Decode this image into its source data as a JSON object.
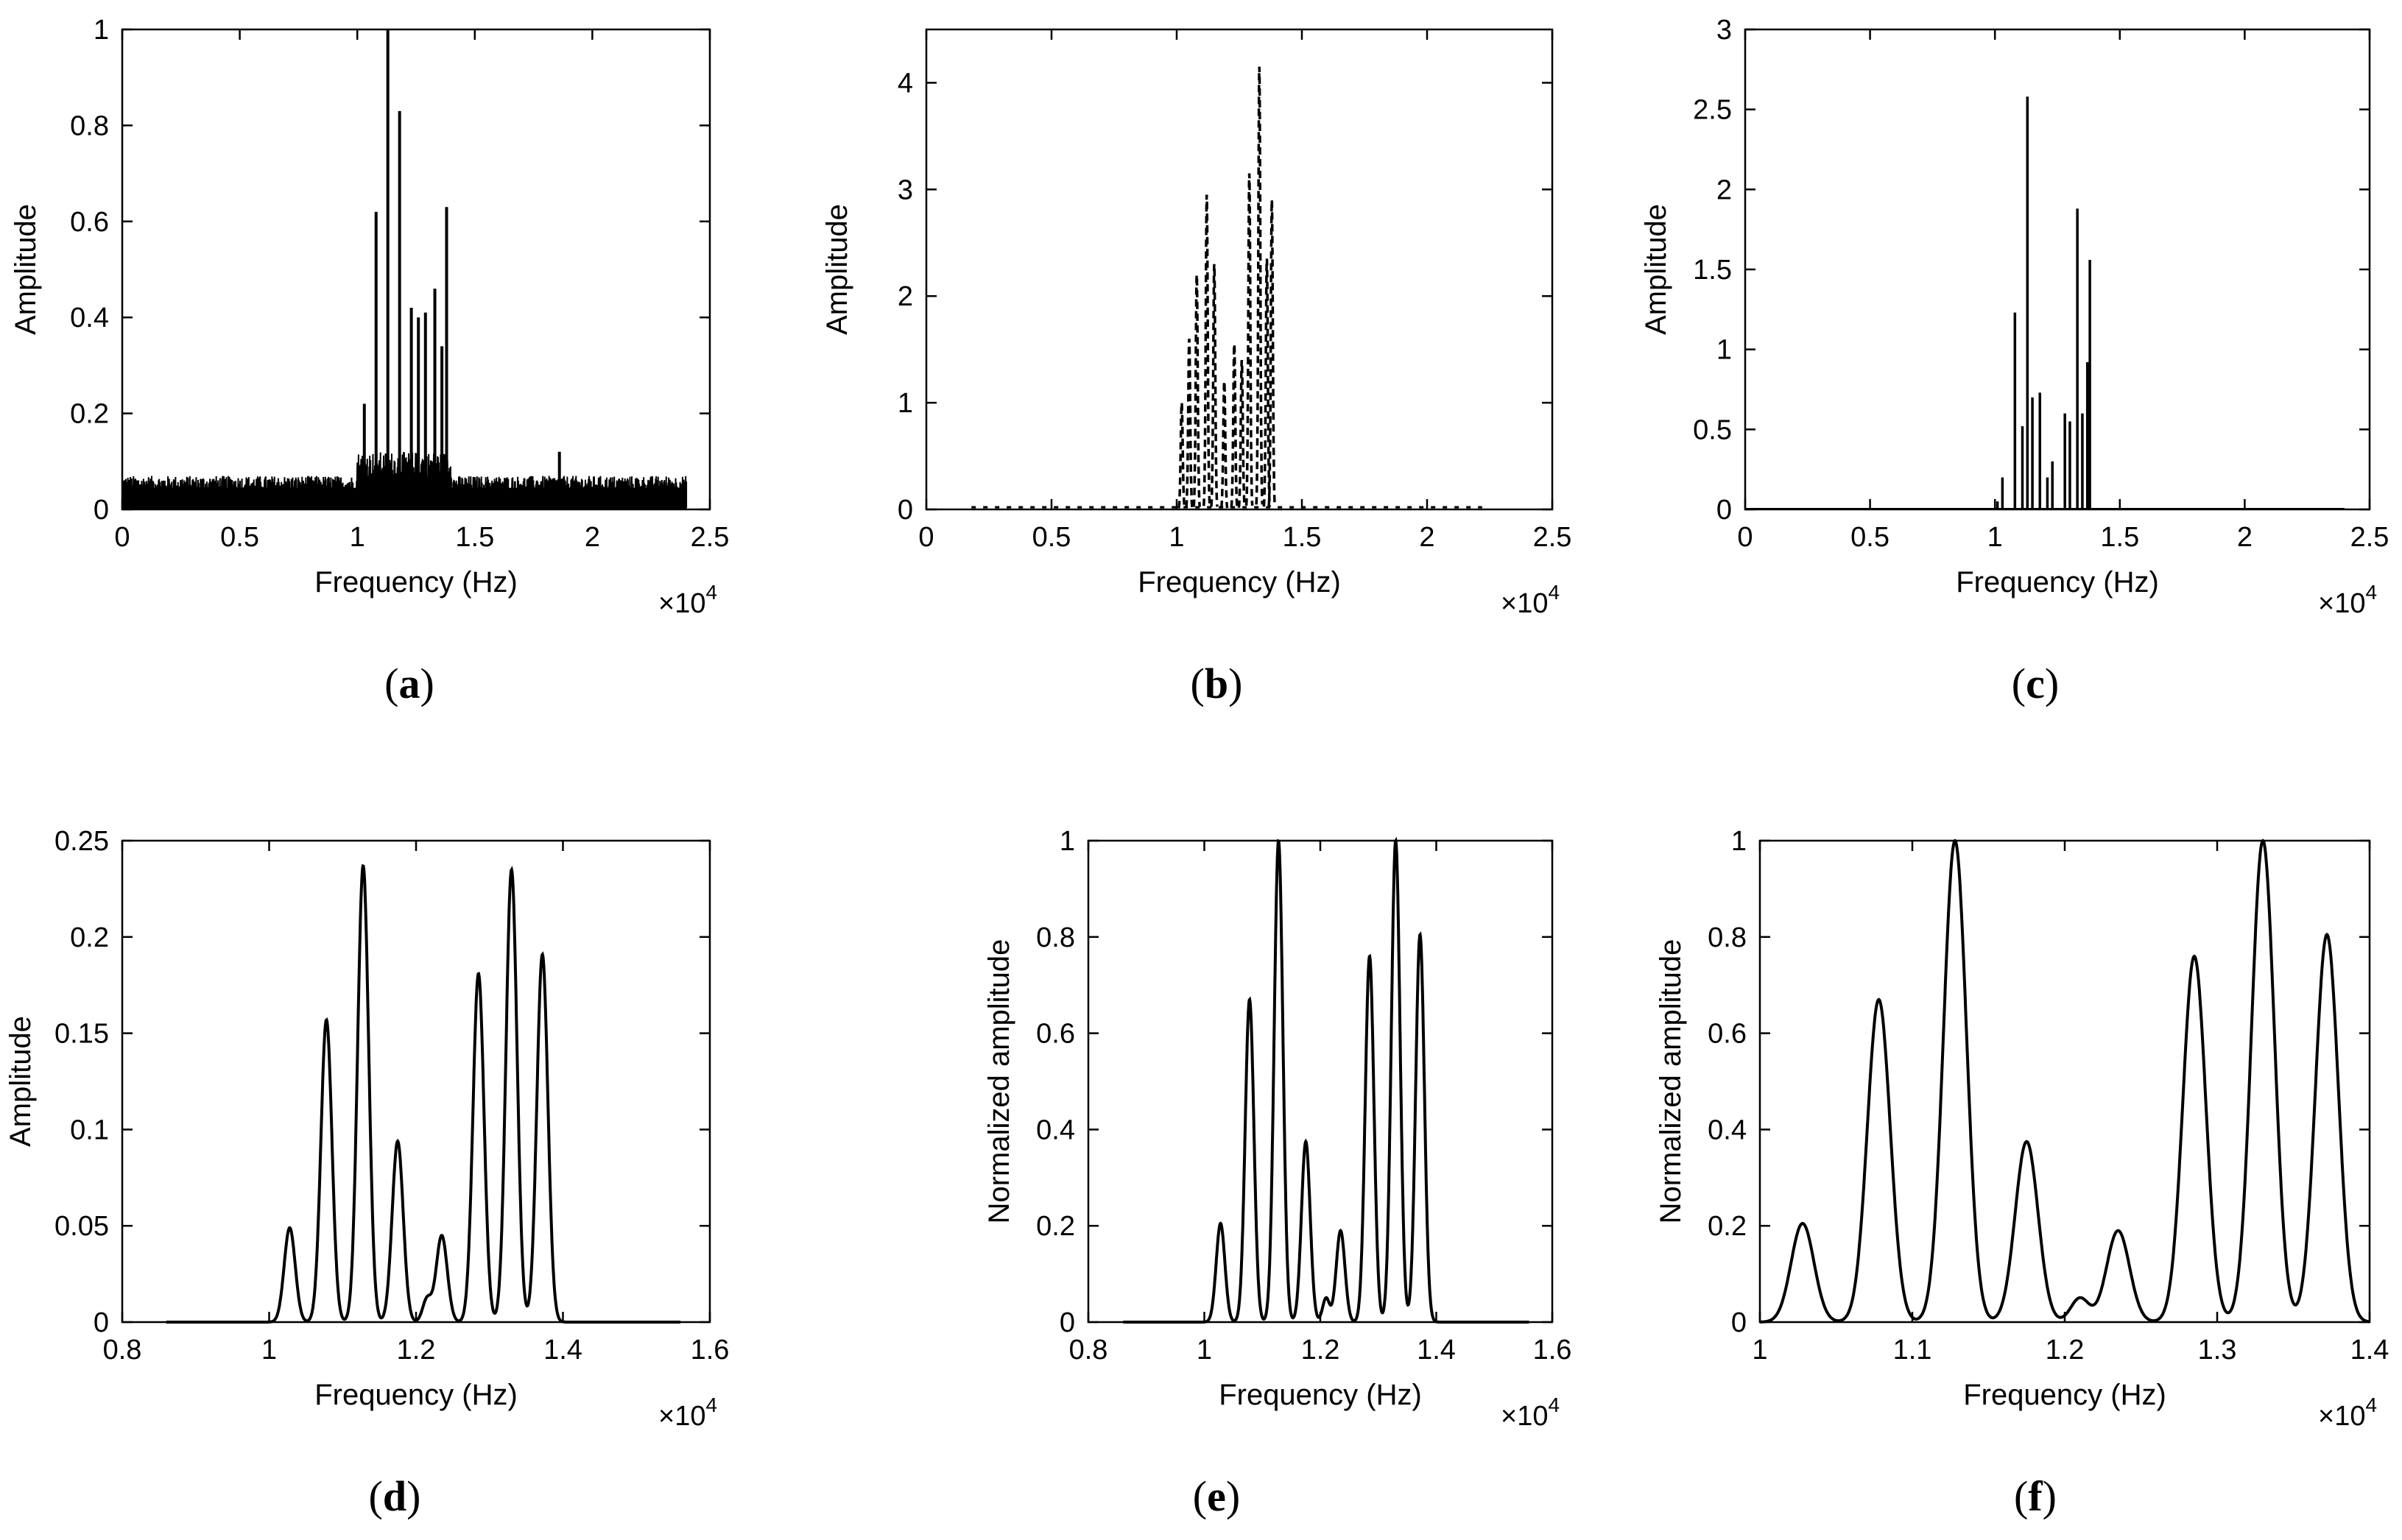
{
  "chart_data": [
    {
      "type": "line",
      "panel_label": [
        "(",
        "a",
        ")"
      ],
      "xlabel": "Frequency (Hz)",
      "ylabel": "Amplitude",
      "x_multiplier": "×10",
      "x_multiplier_exp": "4",
      "xlim": [
        0,
        2.5
      ],
      "ylim": [
        0,
        1
      ],
      "xticks": [
        0,
        0.5,
        1,
        1.5,
        2,
        2.5
      ],
      "xtick_labels": [
        "0",
        "0.5",
        "1",
        "1.5",
        "2",
        "2.5"
      ],
      "yticks": [
        0,
        0.2,
        0.4,
        0.6,
        0.8,
        1
      ],
      "ytick_labels": [
        "0",
        "0.2",
        "0.4",
        "0.6",
        "0.8",
        "1"
      ],
      "noise": {
        "x_range": [
          0,
          2.4
        ],
        "level": 0.07,
        "band": [
          1.0,
          1.4
        ],
        "band_level": 0.12
      },
      "peaks": [
        {
          "x": 1.03,
          "y": 0.22
        },
        {
          "x": 1.08,
          "y": 0.62
        },
        {
          "x": 1.13,
          "y": 1.0
        },
        {
          "x": 1.18,
          "y": 0.83
        },
        {
          "x": 1.23,
          "y": 0.42
        },
        {
          "x": 1.26,
          "y": 0.4
        },
        {
          "x": 1.29,
          "y": 0.41
        },
        {
          "x": 1.33,
          "y": 0.46
        },
        {
          "x": 1.36,
          "y": 0.34
        },
        {
          "x": 1.38,
          "y": 0.63
        },
        {
          "x": 1.86,
          "y": 0.12
        }
      ]
    },
    {
      "type": "line",
      "panel_label": [
        "(",
        "b",
        ")"
      ],
      "xlabel": "Frequency (Hz)",
      "ylabel": "Amplitude",
      "x_multiplier": "×10",
      "x_multiplier_exp": "4",
      "xlim": [
        0,
        2.5
      ],
      "ylim": [
        0,
        4.5
      ],
      "xticks": [
        0,
        0.5,
        1,
        1.5,
        2,
        2.5
      ],
      "xtick_labels": [
        "0",
        "0.5",
        "1",
        "1.5",
        "2",
        "2.5"
      ],
      "yticks": [
        0,
        1,
        2,
        3,
        4
      ],
      "ytick_labels": [
        "0",
        "1",
        "2",
        "3",
        "4"
      ],
      "line_style": "dashed",
      "baseline_range": [
        0.18,
        2.22
      ],
      "lobes": [
        {
          "x": 1.02,
          "y": 1.0,
          "w": 0.004
        },
        {
          "x": 1.05,
          "y": 1.6,
          "w": 0.004
        },
        {
          "x": 1.08,
          "y": 2.2,
          "w": 0.004
        },
        {
          "x": 1.12,
          "y": 2.95,
          "w": 0.004
        },
        {
          "x": 1.15,
          "y": 2.3,
          "w": 0.004
        },
        {
          "x": 1.19,
          "y": 1.2,
          "w": 0.004
        },
        {
          "x": 1.23,
          "y": 1.55,
          "w": 0.004
        },
        {
          "x": 1.26,
          "y": 1.4,
          "w": 0.004
        },
        {
          "x": 1.29,
          "y": 3.15,
          "w": 0.004
        },
        {
          "x": 1.33,
          "y": 4.15,
          "w": 0.004
        },
        {
          "x": 1.36,
          "y": 2.35,
          "w": 0.004
        },
        {
          "x": 1.38,
          "y": 2.9,
          "w": 0.004
        }
      ]
    },
    {
      "type": "line",
      "panel_label": [
        "(",
        "c",
        ")"
      ],
      "xlabel": "Frequency (Hz)",
      "ylabel": "Amplitude",
      "x_multiplier": "×10",
      "x_multiplier_exp": "4",
      "xlim": [
        0,
        2.5
      ],
      "ylim": [
        0,
        3
      ],
      "xticks": [
        0,
        0.5,
        1,
        1.5,
        2,
        2.5
      ],
      "xtick_labels": [
        "0",
        "0.5",
        "1",
        "1.5",
        "2",
        "2.5"
      ],
      "yticks": [
        0,
        0.5,
        1,
        1.5,
        2,
        2.5,
        3
      ],
      "ytick_labels": [
        "0",
        "0.5",
        "1",
        "1.5",
        "2",
        "2.5",
        "3"
      ],
      "peaks": [
        {
          "x": 1.01,
          "y": 0.05
        },
        {
          "x": 1.03,
          "y": 0.2
        },
        {
          "x": 1.08,
          "y": 1.23
        },
        {
          "x": 1.11,
          "y": 0.52
        },
        {
          "x": 1.13,
          "y": 2.58
        },
        {
          "x": 1.15,
          "y": 0.7
        },
        {
          "x": 1.18,
          "y": 0.73
        },
        {
          "x": 1.21,
          "y": 0.2
        },
        {
          "x": 1.23,
          "y": 0.3
        },
        {
          "x": 1.28,
          "y": 0.6
        },
        {
          "x": 1.3,
          "y": 0.55
        },
        {
          "x": 1.33,
          "y": 1.88
        },
        {
          "x": 1.35,
          "y": 0.6
        },
        {
          "x": 1.37,
          "y": 0.92
        },
        {
          "x": 1.38,
          "y": 1.56
        }
      ]
    },
    {
      "type": "line",
      "panel_label": [
        "(",
        "d",
        ")"
      ],
      "xlabel": "Frequency (Hz)",
      "ylabel": "Amplitude",
      "x_multiplier": "×10",
      "x_multiplier_exp": "4",
      "xlim": [
        0.8,
        1.6
      ],
      "ylim": [
        0,
        0.25
      ],
      "xticks": [
        0.8,
        1.0,
        1.2,
        1.4,
        1.6
      ],
      "xtick_labels": [
        "0.8",
        "1",
        "1.2",
        "1.4",
        "1.6"
      ],
      "yticks": [
        0,
        0.05,
        0.1,
        0.15,
        0.2,
        0.25
      ],
      "ytick_labels": [
        "0",
        "0.05",
        "0.1",
        "0.15",
        "0.2",
        "0.25"
      ],
      "curve_range": [
        0.86,
        1.56
      ],
      "lobes": [
        {
          "x": 1.028,
          "y": 0.049,
          "w": 0.0075
        },
        {
          "x": 1.078,
          "y": 0.157,
          "w": 0.0075
        },
        {
          "x": 1.128,
          "y": 0.237,
          "w": 0.0075
        },
        {
          "x": 1.175,
          "y": 0.094,
          "w": 0.0075
        },
        {
          "x": 1.215,
          "y": 0.012,
          "w": 0.006
        },
        {
          "x": 1.235,
          "y": 0.045,
          "w": 0.0075
        },
        {
          "x": 1.285,
          "y": 0.181,
          "w": 0.0075
        },
        {
          "x": 1.33,
          "y": 0.235,
          "w": 0.0075
        },
        {
          "x": 1.372,
          "y": 0.191,
          "w": 0.0075
        }
      ]
    },
    {
      "type": "line",
      "panel_label": [
        "(",
        "e",
        ")"
      ],
      "xlabel": "Frequency (Hz)",
      "ylabel": "Normalized amplitude",
      "x_multiplier": "×10",
      "x_multiplier_exp": "4",
      "xlim": [
        0.8,
        1.6
      ],
      "ylim": [
        0,
        1
      ],
      "xticks": [
        0.8,
        1.0,
        1.2,
        1.4,
        1.6
      ],
      "xtick_labels": [
        "0.8",
        "1",
        "1.2",
        "1.4",
        "1.6"
      ],
      "yticks": [
        0,
        0.2,
        0.4,
        0.6,
        0.8,
        1
      ],
      "ytick_labels": [
        "0",
        "0.2",
        "0.4",
        "0.6",
        "0.8",
        "1"
      ],
      "curve_range": [
        0.86,
        1.56
      ],
      "lobes": [
        {
          "x": 1.028,
          "y": 0.205,
          "w": 0.0075
        },
        {
          "x": 1.078,
          "y": 0.67,
          "w": 0.0075
        },
        {
          "x": 1.128,
          "y": 1.0,
          "w": 0.0075
        },
        {
          "x": 1.175,
          "y": 0.375,
          "w": 0.0075
        },
        {
          "x": 1.21,
          "y": 0.05,
          "w": 0.006
        },
        {
          "x": 1.235,
          "y": 0.19,
          "w": 0.0075
        },
        {
          "x": 1.285,
          "y": 0.76,
          "w": 0.0075
        },
        {
          "x": 1.33,
          "y": 1.0,
          "w": 0.0075
        },
        {
          "x": 1.372,
          "y": 0.805,
          "w": 0.0075
        }
      ]
    },
    {
      "type": "line",
      "panel_label": [
        "(",
        "f",
        ")"
      ],
      "xlabel": "Frequency (Hz)",
      "ylabel": "Normalized amplitude",
      "x_multiplier": "×10",
      "x_multiplier_exp": "4",
      "xlim": [
        1.0,
        1.4
      ],
      "ylim": [
        0,
        1
      ],
      "xticks": [
        1.0,
        1.1,
        1.2,
        1.3,
        1.4
      ],
      "xtick_labels": [
        "1",
        "1.1",
        "1.2",
        "1.3",
        "1.4"
      ],
      "yticks": [
        0,
        0.2,
        0.4,
        0.6,
        0.8,
        1
      ],
      "ytick_labels": [
        "0",
        "0.2",
        "0.4",
        "0.6",
        "0.8",
        "1"
      ],
      "curve_range": [
        1.0,
        1.4
      ],
      "lobes": [
        {
          "x": 1.028,
          "y": 0.205,
          "w": 0.0075
        },
        {
          "x": 1.078,
          "y": 0.67,
          "w": 0.0075
        },
        {
          "x": 1.128,
          "y": 1.0,
          "w": 0.0075
        },
        {
          "x": 1.175,
          "y": 0.375,
          "w": 0.0075
        },
        {
          "x": 1.21,
          "y": 0.05,
          "w": 0.006
        },
        {
          "x": 1.235,
          "y": 0.19,
          "w": 0.0075
        },
        {
          "x": 1.285,
          "y": 0.76,
          "w": 0.0075
        },
        {
          "x": 1.33,
          "y": 1.0,
          "w": 0.0075
        },
        {
          "x": 1.372,
          "y": 0.805,
          "w": 0.0075
        }
      ]
    }
  ]
}
